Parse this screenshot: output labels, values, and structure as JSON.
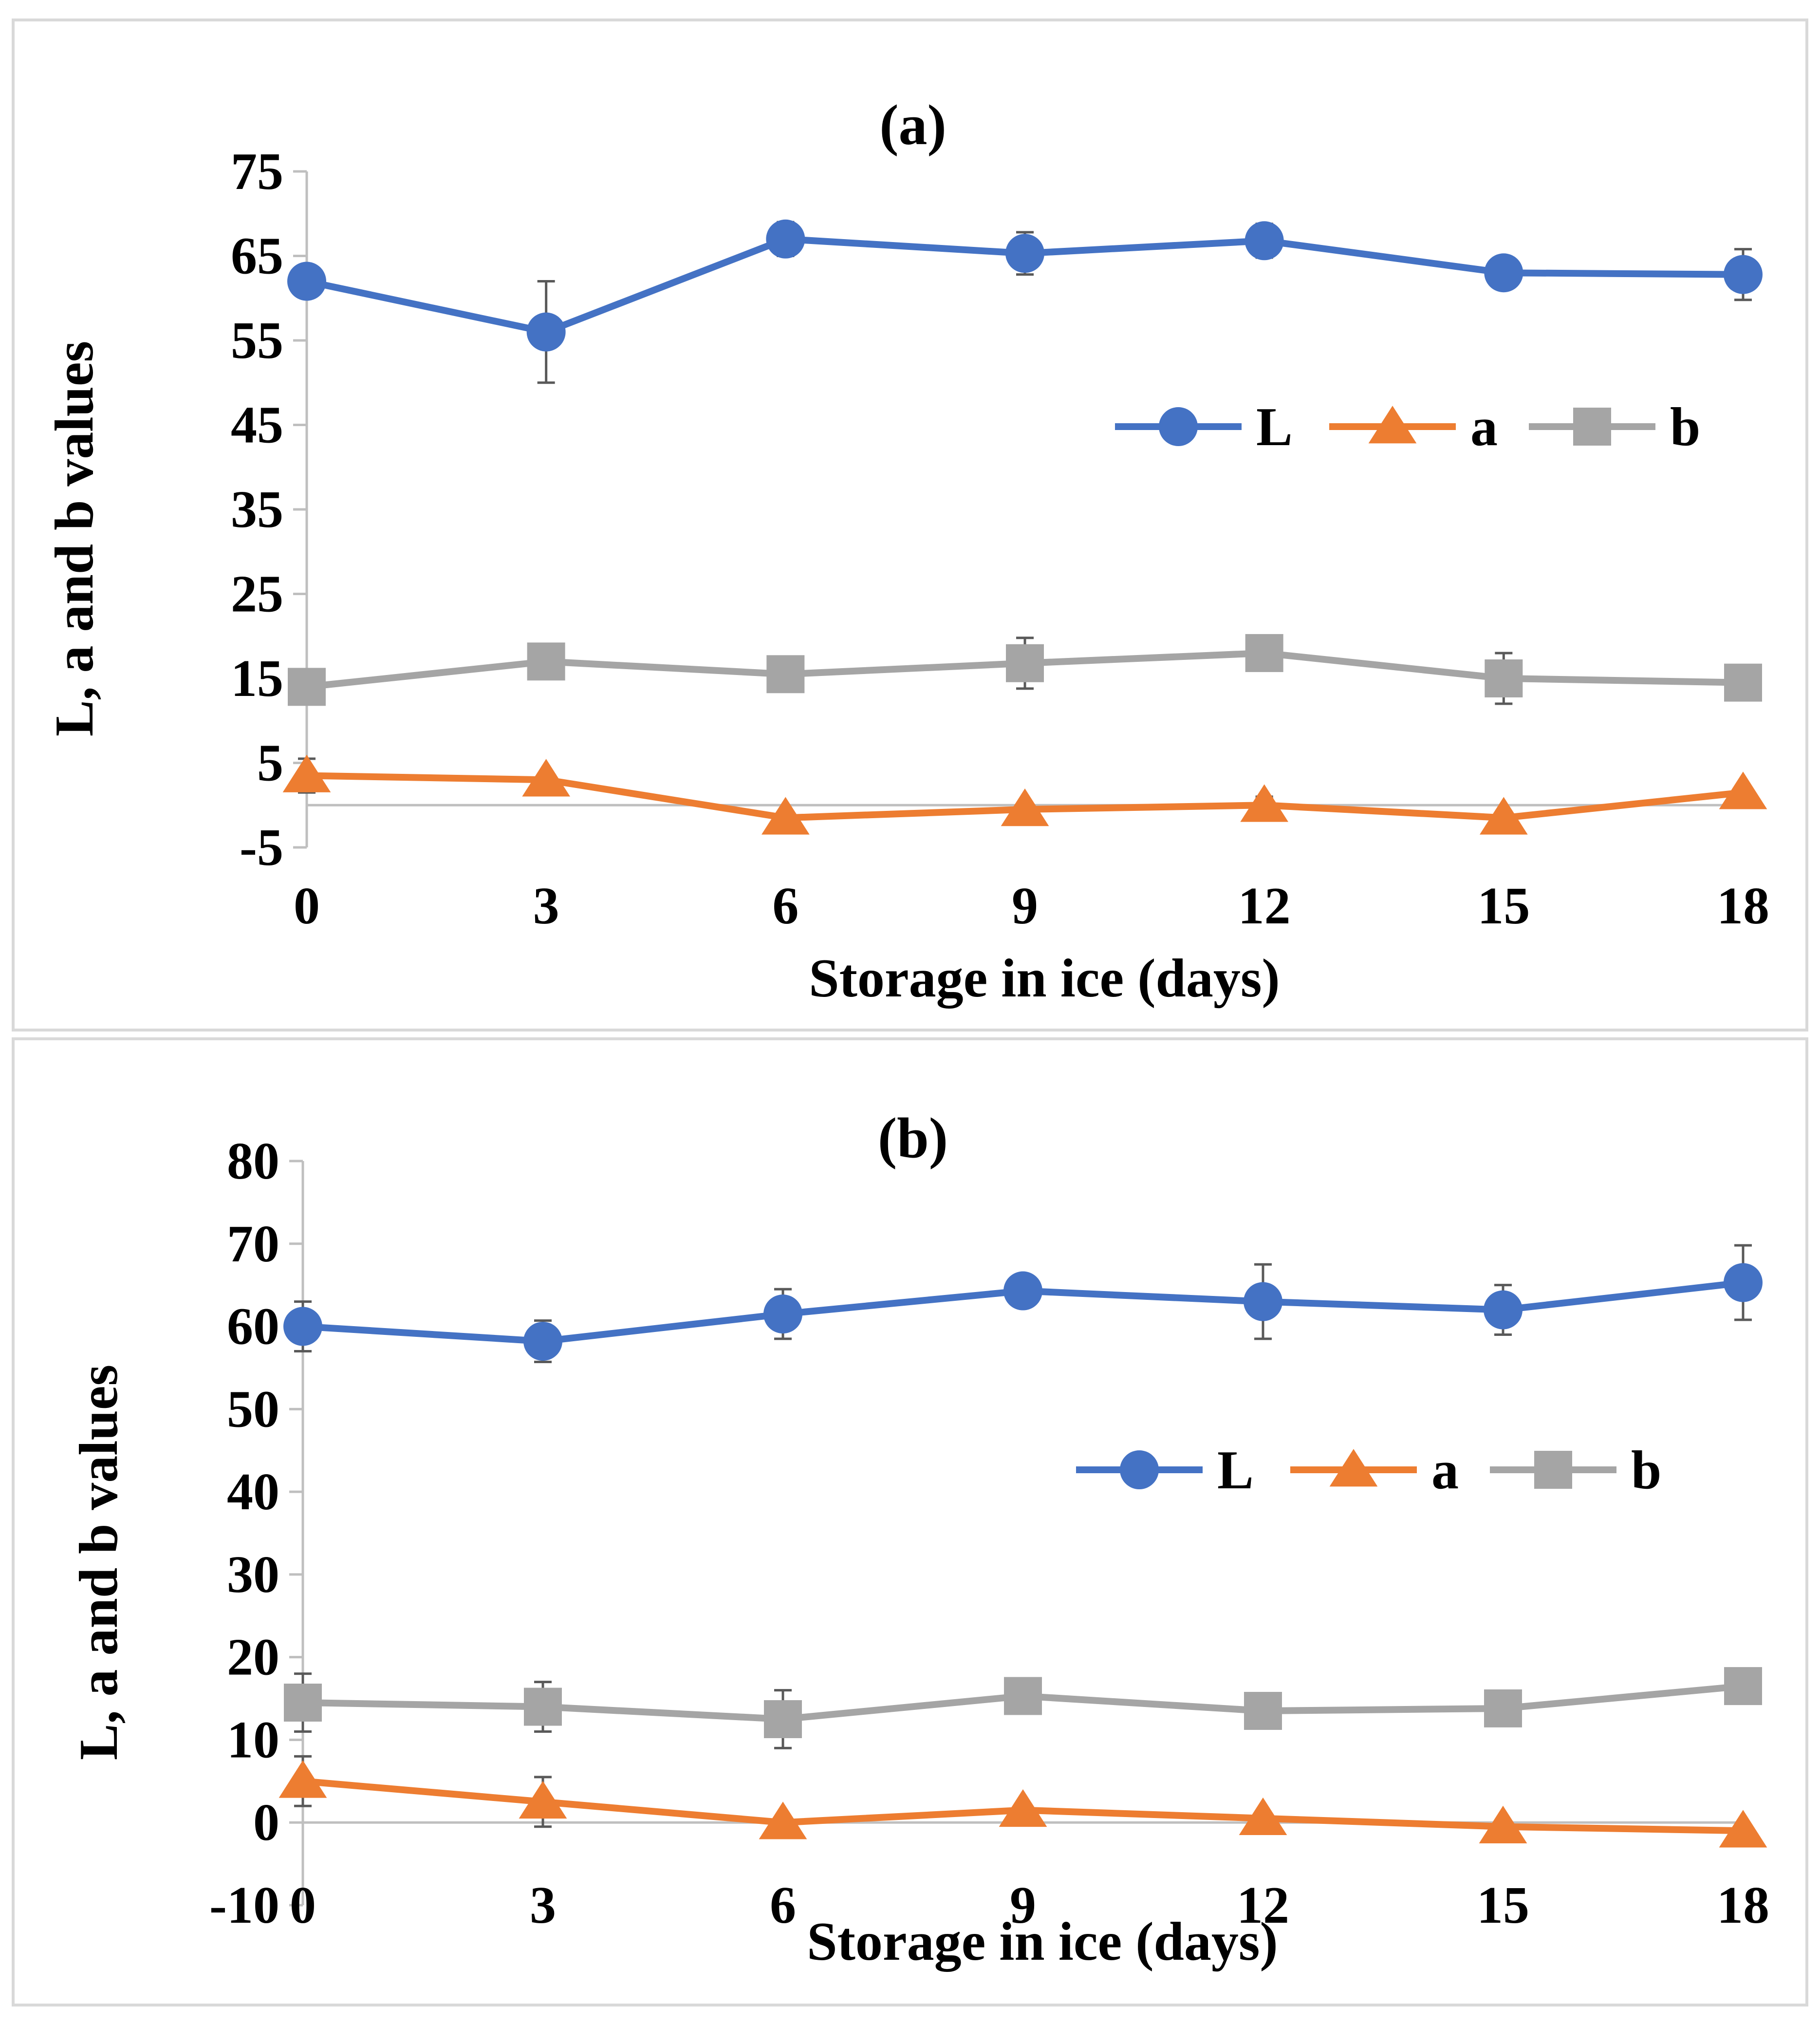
{
  "colors": {
    "L": "#4472C4",
    "a": "#ED7D31",
    "b": "#A5A5A5",
    "axis": "#bfbfbf",
    "error": "#595959"
  },
  "chart_data": [
    {
      "type": "line",
      "title": "(a)",
      "xlabel": "Storage in ice (days)",
      "ylabel": "L, a and b values",
      "categories": [
        "0",
        "3",
        "6",
        "9",
        "12",
        "15",
        "18"
      ],
      "x": [
        0,
        3,
        6,
        9,
        12,
        15,
        18
      ],
      "ylim": [
        -5,
        75
      ],
      "yticks": [
        -5,
        5,
        15,
        25,
        35,
        45,
        55,
        65,
        75
      ],
      "ytick_labels": [
        "-5",
        "5",
        "15",
        "25",
        "35",
        "45",
        "55",
        "65",
        "75"
      ],
      "legend_position": "upper-right",
      "series": [
        {
          "name": "L",
          "marker": "circle",
          "values": [
            62,
            56,
            67,
            65.3,
            66.8,
            63,
            62.8
          ],
          "errors": [
            0,
            6,
            2,
            2.5,
            2,
            1.5,
            3
          ]
        },
        {
          "name": "a",
          "marker": "triangle",
          "values": [
            3.5,
            3,
            -1.5,
            -0.5,
            0,
            -1.5,
            1.5
          ],
          "errors": [
            2,
            0,
            0,
            0,
            1,
            0,
            0
          ]
        },
        {
          "name": "b",
          "marker": "square",
          "values": [
            14,
            17,
            15.5,
            16.8,
            18,
            15,
            14.5
          ],
          "errors": [
            1,
            1.5,
            0,
            3,
            1,
            3,
            0
          ]
        }
      ]
    },
    {
      "type": "line",
      "title": "(b)",
      "xlabel": "Storage in ice (days)",
      "ylabel": "L, a and b values",
      "categories": [
        "0",
        "3",
        "6",
        "9",
        "12",
        "15",
        "18"
      ],
      "x": [
        0,
        3,
        6,
        9,
        12,
        15,
        18
      ],
      "ylim": [
        -10,
        80
      ],
      "yticks": [
        -10,
        0,
        10,
        20,
        30,
        40,
        50,
        60,
        70,
        80
      ],
      "ytick_labels": [
        "-10",
        "0",
        "10",
        "20",
        "30",
        "40",
        "50",
        "60",
        "70",
        "80"
      ],
      "legend_position": "upper-right",
      "series": [
        {
          "name": "L",
          "marker": "circle",
          "values": [
            60,
            58.2,
            61.5,
            64.3,
            63,
            62,
            65.3
          ],
          "errors": [
            3,
            2.5,
            3,
            0,
            4.5,
            3,
            4.5
          ]
        },
        {
          "name": "a",
          "marker": "triangle",
          "values": [
            5,
            2.5,
            0,
            1.5,
            0.5,
            -0.5,
            -1
          ],
          "errors": [
            3,
            3,
            0,
            0,
            0,
            0,
            0
          ]
        },
        {
          "name": "b",
          "marker": "square",
          "values": [
            14.5,
            14,
            12.5,
            15.3,
            13.5,
            13.8,
            16.5
          ],
          "errors": [
            3.5,
            3,
            3.5,
            0,
            0,
            0,
            0
          ]
        }
      ]
    }
  ]
}
